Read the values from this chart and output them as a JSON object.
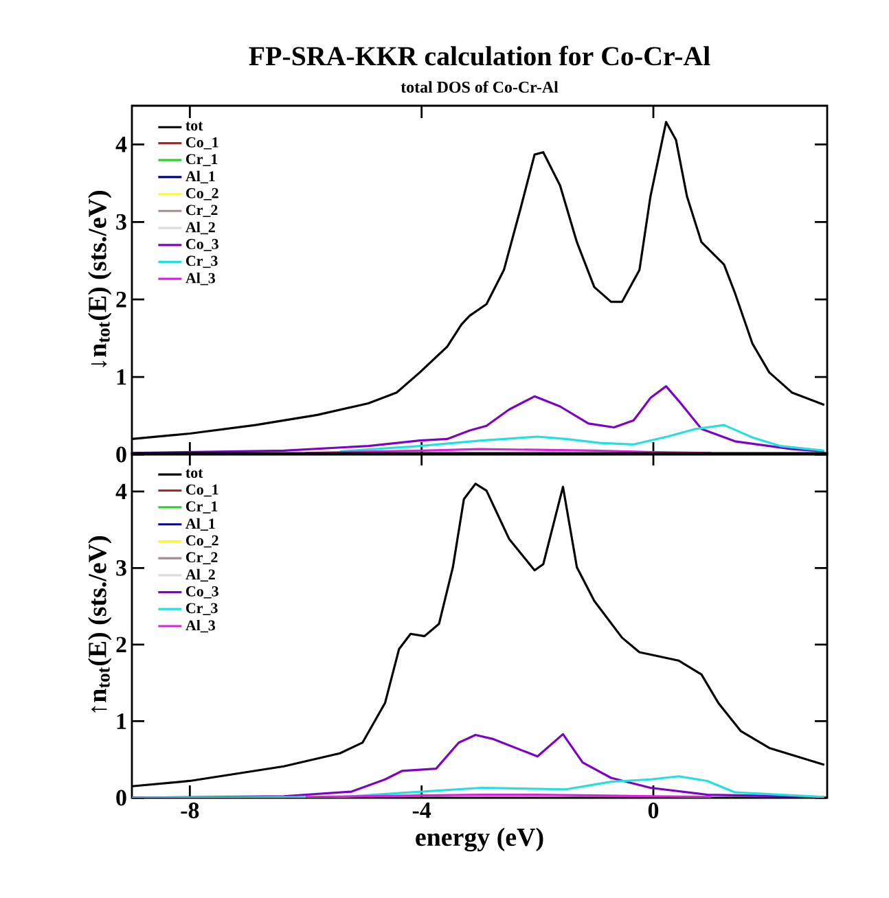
{
  "chart_data": [
    {
      "type": "line",
      "title": "FP-SRA-KKR calculation for Co-Cr-Al",
      "subtitle": "total DOS of Co-Cr-Al",
      "ylabel": "↓n$_{tot}$(E) (sts./eV)",
      "xlim": [
        -9,
        3
      ],
      "ylim": [
        0,
        4.5
      ],
      "xticks": [
        -8,
        -4,
        0
      ],
      "yticks": [
        0,
        1,
        2,
        3,
        4
      ],
      "tick_labels": "y",
      "legend": "top left",
      "grid": false,
      "x": [
        -9,
        -8,
        -6.87,
        -5.8,
        -4.92,
        -4.43,
        -4.03,
        -3.56,
        -3.31,
        -3.17,
        -2.88,
        -2.58,
        -2.29,
        -2.05,
        -1.9,
        -1.61,
        -1.32,
        -1.02,
        -0.73,
        -0.54,
        -0.24,
        -0.05,
        0.22,
        0.39,
        0.58,
        0.83,
        1.22,
        1.41,
        1.71,
        2.0,
        2.39,
        2.95
      ],
      "series": [
        {
          "name": "tot",
          "color": "#000000",
          "values": [
            0.2,
            0.27,
            0.38,
            0.51,
            0.66,
            0.8,
            1.06,
            1.39,
            1.68,
            1.79,
            1.94,
            2.38,
            3.18,
            3.87,
            3.9,
            3.47,
            2.74,
            2.16,
            1.97,
            1.97,
            2.38,
            3.33,
            4.29,
            4.06,
            3.33,
            2.74,
            2.45,
            2.08,
            1.43,
            1.06,
            0.8,
            0.64
          ]
        },
        {
          "name": "Co_1",
          "color": "#b22222",
          "values": [
            null,
            null,
            null,
            null,
            null,
            null,
            null,
            null,
            null,
            null,
            null,
            null,
            null,
            null,
            null,
            null,
            null,
            null,
            null,
            null,
            null,
            null,
            null,
            null,
            null,
            null,
            null,
            null,
            null,
            null,
            null,
            null
          ]
        },
        {
          "name": "Cr_1",
          "color": "#32cd32",
          "values": [
            null,
            null,
            null,
            null,
            null,
            null,
            null,
            null,
            null,
            null,
            null,
            null,
            null,
            null,
            null,
            null,
            null,
            null,
            null,
            null,
            null,
            null,
            null,
            null,
            null,
            null,
            null,
            null,
            null,
            null,
            null,
            null
          ]
        },
        {
          "name": "Al_1",
          "color": "#000080",
          "values": [
            null,
            null,
            null,
            null,
            null,
            null,
            null,
            null,
            null,
            null,
            null,
            null,
            null,
            null,
            null,
            null,
            null,
            null,
            null,
            null,
            null,
            null,
            null,
            null,
            null,
            null,
            null,
            null,
            null,
            null,
            null,
            null
          ]
        },
        {
          "name": "Co_2",
          "color": "#ffff00",
          "values": [
            null,
            null,
            null,
            null,
            null,
            null,
            null,
            null,
            null,
            null,
            null,
            null,
            null,
            null,
            null,
            null,
            null,
            null,
            null,
            null,
            null,
            null,
            null,
            null,
            null,
            null,
            null,
            null,
            null,
            null,
            null,
            null
          ]
        },
        {
          "name": "Cr_2",
          "color": "#9e8e8e",
          "values": [
            null,
            null,
            null,
            null,
            null,
            null,
            null,
            null,
            null,
            null,
            null,
            null,
            null,
            null,
            null,
            null,
            null,
            null,
            null,
            null,
            null,
            null,
            null,
            null,
            null,
            null,
            null,
            null,
            null,
            null,
            null,
            null
          ]
        },
        {
          "name": "Al_2",
          "color": "#dcdcdc",
          "values": [
            null,
            null,
            null,
            null,
            null,
            null,
            null,
            null,
            null,
            null,
            null,
            null,
            null,
            null,
            null,
            null,
            null,
            null,
            null,
            null,
            null,
            null,
            null,
            null,
            null,
            null,
            null,
            null,
            null,
            null,
            null,
            null
          ]
        },
        {
          "name": "Co_3",
          "color": "#7f00c8",
          "x": [
            -9,
            -6.38,
            -4.92,
            -4.03,
            -3.56,
            -3.17,
            -2.88,
            -2.49,
            -2.05,
            -1.61,
            -1.12,
            -0.68,
            -0.34,
            -0.05,
            0.22,
            0.44,
            0.83,
            1.41,
            2.39,
            2.95
          ],
          "values": [
            0.02,
            0.05,
            0.11,
            0.18,
            0.2,
            0.31,
            0.37,
            0.58,
            0.75,
            0.62,
            0.4,
            0.35,
            0.44,
            0.73,
            0.88,
            0.69,
            0.33,
            0.17,
            0.07,
            0.04
          ]
        },
        {
          "name": "Cr_3",
          "color": "#20e0e0",
          "x": [
            -5.41,
            -4.03,
            -2.97,
            -2.0,
            -1.51,
            -0.93,
            -0.34,
            0.24,
            0.73,
            1.22,
            1.71,
            2.19,
            2.95
          ],
          "values": [
            0.04,
            0.11,
            0.18,
            0.23,
            0.2,
            0.15,
            0.13,
            0.23,
            0.33,
            0.38,
            0.22,
            0.11,
            0.05
          ]
        },
        {
          "name": "Al_3",
          "color": "#e020e0",
          "x": [
            -6,
            -4,
            -3,
            -2,
            -1,
            0,
            1
          ],
          "values": [
            0.02,
            0.05,
            0.07,
            0.06,
            0.05,
            0.03,
            0.02
          ]
        }
      ]
    },
    {
      "type": "line",
      "xlabel": "energy (eV)",
      "ylabel": "↑n$_{tot}$(E) (sts./eV)",
      "xlim": [
        -9,
        3
      ],
      "ylim": [
        0,
        4.5
      ],
      "xticks": [
        -8,
        -4,
        0
      ],
      "yticks": [
        0,
        1,
        2,
        3,
        4
      ],
      "legend": "top left",
      "grid": false,
      "x": [
        -9,
        -8,
        -6.38,
        -5.41,
        -5.02,
        -4.63,
        -4.39,
        -4.19,
        -3.95,
        -3.7,
        -3.46,
        -3.27,
        -3.07,
        -2.88,
        -2.49,
        -2.05,
        -1.9,
        -1.56,
        -1.32,
        -1.02,
        -0.54,
        -0.24,
        0.44,
        0.83,
        1.12,
        1.51,
        2.0,
        2.95
      ],
      "series": [
        {
          "name": "tot",
          "color": "#000000",
          "values": [
            0.15,
            0.22,
            0.41,
            0.58,
            0.72,
            1.24,
            1.94,
            2.14,
            2.11,
            2.27,
            3.01,
            3.9,
            4.1,
            4.01,
            3.38,
            2.97,
            3.05,
            4.06,
            3.01,
            2.57,
            2.09,
            1.9,
            1.79,
            1.61,
            1.24,
            0.87,
            0.65,
            0.43
          ]
        },
        {
          "name": "Co_1",
          "color": "#b22222",
          "values": [
            null,
            null,
            null,
            null,
            null,
            null,
            null,
            null,
            null,
            null,
            null,
            null,
            null,
            null,
            null,
            null,
            null,
            null,
            null,
            null,
            null,
            null,
            null,
            null,
            null,
            null,
            null,
            null
          ]
        },
        {
          "name": "Cr_1",
          "color": "#32cd32",
          "values": [
            null,
            null,
            null,
            null,
            null,
            null,
            null,
            null,
            null,
            null,
            null,
            null,
            null,
            null,
            null,
            null,
            null,
            null,
            null,
            null,
            null,
            null,
            null,
            null,
            null,
            null,
            null,
            null
          ]
        },
        {
          "name": "Al_1",
          "color": "#000080",
          "values": [
            null,
            null,
            null,
            null,
            null,
            null,
            null,
            null,
            null,
            null,
            null,
            null,
            null,
            null,
            null,
            null,
            null,
            null,
            null,
            null,
            null,
            null,
            null,
            null,
            null,
            null,
            null,
            null
          ]
        },
        {
          "name": "Co_2",
          "color": "#ffff00",
          "values": [
            null,
            null,
            null,
            null,
            null,
            null,
            null,
            null,
            null,
            null,
            null,
            null,
            null,
            null,
            null,
            null,
            null,
            null,
            null,
            null,
            null,
            null,
            null,
            null,
            null,
            null,
            null,
            null
          ]
        },
        {
          "name": "Cr_2",
          "color": "#9e8e8e",
          "values": [
            null,
            null,
            null,
            null,
            null,
            null,
            null,
            null,
            null,
            null,
            null,
            null,
            null,
            null,
            null,
            null,
            null,
            null,
            null,
            null,
            null,
            null,
            null,
            null,
            null,
            null,
            null,
            null
          ]
        },
        {
          "name": "Al_2",
          "color": "#dcdcdc",
          "values": [
            null,
            null,
            null,
            null,
            null,
            null,
            null,
            null,
            null,
            null,
            null,
            null,
            null,
            null,
            null,
            null,
            null,
            null,
            null,
            null,
            null,
            null,
            null,
            null,
            null,
            null,
            null,
            null
          ]
        },
        {
          "name": "Co_3",
          "color": "#7f00c8",
          "x": [
            -9,
            -6.38,
            -5.21,
            -4.63,
            -4.34,
            -3.75,
            -3.36,
            -3.07,
            -2.78,
            -2.0,
            -1.56,
            -1.22,
            -0.73,
            -0.05,
            0.93,
            2.95
          ],
          "values": [
            0,
            0.02,
            0.08,
            0.24,
            0.35,
            0.38,
            0.72,
            0.82,
            0.77,
            0.54,
            0.83,
            0.46,
            0.26,
            0.13,
            0.04,
            0.01
          ]
        },
        {
          "name": "Cr_3",
          "color": "#20e0e0",
          "x": [
            -9,
            -5.41,
            -4.43,
            -2.97,
            -1.51,
            -0.73,
            -0.05,
            0.44,
            0.93,
            1.41,
            2.95
          ],
          "values": [
            0,
            0.01,
            0.06,
            0.13,
            0.11,
            0.21,
            0.24,
            0.28,
            0.22,
            0.07,
            0.01
          ]
        },
        {
          "name": "Al_3",
          "color": "#e020e0",
          "x": [
            -6,
            -4,
            -3,
            -2,
            -1,
            0,
            1
          ],
          "values": [
            0.01,
            0.03,
            0.04,
            0.04,
            0.03,
            0.02,
            0.01
          ]
        }
      ]
    }
  ]
}
